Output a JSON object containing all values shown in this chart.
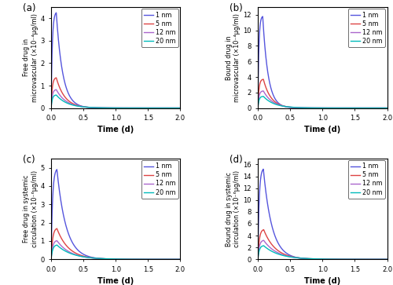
{
  "legend_labels": [
    "1 nm",
    "5 nm",
    "12 nm",
    "20 nm"
  ],
  "colors": [
    "#5555dd",
    "#dd4444",
    "#aa66cc",
    "#00bbbb"
  ],
  "panels": [
    {
      "label": "(a)",
      "ylabel": "Free drug in\nmicrovascular (×10⁻⁴μg/ml)",
      "xlabel": "Time (d)",
      "ylim": [
        0,
        4.5
      ],
      "yticks": [
        0,
        1,
        2,
        3,
        4
      ],
      "peaks": [
        4.25,
        1.35,
        0.82,
        0.58
      ],
      "peak_time": [
        0.08,
        0.08,
        0.08,
        0.08
      ],
      "decay_rate": [
        10.0,
        7.5,
        6.5,
        5.8
      ],
      "rise_rate": [
        55,
        55,
        55,
        55
      ]
    },
    {
      "label": "(b)",
      "ylabel": "Bound drug in\nmicrovascular (×10⁻⁴μg/ml)",
      "xlabel": "Time (d)",
      "ylim": [
        0,
        13
      ],
      "yticks": [
        0,
        2,
        4,
        6,
        8,
        10,
        12
      ],
      "peaks": [
        11.8,
        3.7,
        2.2,
        1.5
      ],
      "peak_time": [
        0.075,
        0.085,
        0.085,
        0.085
      ],
      "decay_rate": [
        12.0,
        8.5,
        7.0,
        6.0
      ],
      "rise_rate": [
        65,
        58,
        58,
        58
      ]
    },
    {
      "label": "(c)",
      "ylabel": "Free drug in systemic\ncirculation (×10⁻⁶μg/ml)",
      "xlabel": "Time (d)",
      "ylim": [
        0,
        5.5
      ],
      "yticks": [
        0,
        1,
        2,
        3,
        4,
        5
      ],
      "peaks": [
        4.9,
        1.68,
        1.02,
        0.78
      ],
      "peak_time": [
        0.09,
        0.09,
        0.09,
        0.09
      ],
      "decay_rate": [
        7.0,
        5.5,
        4.8,
        4.2
      ],
      "rise_rate": [
        45,
        42,
        42,
        42
      ]
    },
    {
      "label": "(d)",
      "ylabel": "Bound drug in systemic\ncirculation (×10⁻⁶μg/ml)",
      "xlabel": "Time (d)",
      "ylim": [
        0,
        17
      ],
      "yticks": [
        0,
        2,
        4,
        6,
        8,
        10,
        12,
        14,
        16
      ],
      "peaks": [
        15.2,
        5.0,
        3.2,
        2.3
      ],
      "peak_time": [
        0.085,
        0.09,
        0.09,
        0.09
      ],
      "decay_rate": [
        7.5,
        5.5,
        4.8,
        4.2
      ],
      "rise_rate": [
        50,
        45,
        45,
        45
      ]
    }
  ],
  "figsize": [
    5.0,
    3.63
  ],
  "dpi": 100
}
